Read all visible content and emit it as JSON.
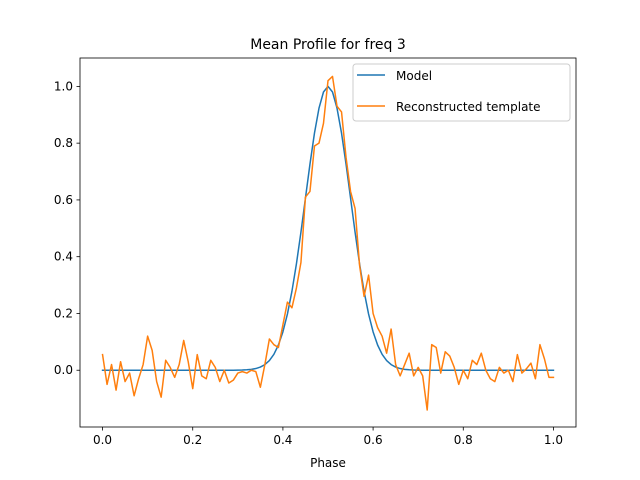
{
  "chart_data": {
    "type": "line",
    "title": "Mean Profile for freq 3",
    "xlabel": "Phase",
    "ylabel": "",
    "xlim": [
      -0.05,
      1.05
    ],
    "ylim": [
      -0.2,
      1.1
    ],
    "xticks": [
      0.0,
      0.2,
      0.4,
      0.6,
      0.8,
      1.0
    ],
    "xtick_labels": [
      "0.0",
      "0.2",
      "0.4",
      "0.6",
      "0.8",
      "1.0"
    ],
    "yticks": [
      0.0,
      0.2,
      0.4,
      0.6,
      0.8,
      1.0
    ],
    "ytick_labels": [
      "0.0",
      "0.2",
      "0.4",
      "0.6",
      "0.8",
      "1.0"
    ],
    "grid": false,
    "legend_position": "top-right",
    "series": [
      {
        "name": "Model",
        "color": "#1f77b4",
        "model": "gaussian",
        "center": 0.5,
        "sigma": 0.05,
        "amplitude": 1.0,
        "x_start": 0.0,
        "x_end": 1.0,
        "points": 101
      },
      {
        "name": "Reconstructed template",
        "color": "#ff7f0e",
        "x": [
          0.0,
          0.01,
          0.02,
          0.03,
          0.04,
          0.05,
          0.06,
          0.07,
          0.08,
          0.09,
          0.1,
          0.11,
          0.12,
          0.13,
          0.14,
          0.15,
          0.16,
          0.17,
          0.18,
          0.19,
          0.2,
          0.21,
          0.22,
          0.23,
          0.24,
          0.25,
          0.26,
          0.27,
          0.28,
          0.29,
          0.3,
          0.31,
          0.32,
          0.33,
          0.34,
          0.35,
          0.36,
          0.37,
          0.38,
          0.39,
          0.4,
          0.41,
          0.42,
          0.43,
          0.44,
          0.45,
          0.46,
          0.47,
          0.48,
          0.49,
          0.5,
          0.51,
          0.52,
          0.53,
          0.54,
          0.55,
          0.56,
          0.57,
          0.58,
          0.59,
          0.6,
          0.61,
          0.62,
          0.63,
          0.64,
          0.65,
          0.66,
          0.67,
          0.68,
          0.69,
          0.7,
          0.71,
          0.72,
          0.73,
          0.74,
          0.75,
          0.76,
          0.77,
          0.78,
          0.79,
          0.8,
          0.81,
          0.82,
          0.83,
          0.84,
          0.85,
          0.86,
          0.87,
          0.88,
          0.89,
          0.9,
          0.91,
          0.92,
          0.93,
          0.94,
          0.95,
          0.96,
          0.97,
          0.98,
          0.99,
          1.0
        ],
        "y": [
          0.055,
          -0.05,
          0.02,
          -0.07,
          0.03,
          -0.04,
          -0.01,
          -0.09,
          -0.03,
          0.02,
          0.12,
          0.07,
          -0.04,
          -0.095,
          0.035,
          0.01,
          -0.025,
          0.02,
          0.105,
          0.03,
          -0.065,
          0.055,
          -0.02,
          -0.03,
          0.035,
          0.01,
          -0.04,
          0.0,
          -0.045,
          -0.035,
          -0.01,
          -0.005,
          -0.01,
          0.0,
          -0.005,
          -0.06,
          0.02,
          0.11,
          0.09,
          0.08,
          0.16,
          0.24,
          0.22,
          0.29,
          0.38,
          0.61,
          0.63,
          0.79,
          0.8,
          0.87,
          1.02,
          1.035,
          0.93,
          0.91,
          0.75,
          0.63,
          0.57,
          0.37,
          0.26,
          0.335,
          0.2,
          0.15,
          0.12,
          0.06,
          0.145,
          0.02,
          -0.02,
          0.02,
          0.06,
          -0.02,
          0.01,
          -0.02,
          -0.14,
          0.09,
          0.08,
          -0.01,
          0.065,
          0.05,
          0.01,
          -0.05,
          0.0,
          -0.03,
          0.035,
          0.02,
          0.06,
          0.0,
          -0.03,
          -0.04,
          0.01,
          -0.01,
          0.0,
          -0.04,
          0.055,
          -0.01,
          0.005,
          0.025,
          -0.03,
          0.09,
          0.04,
          -0.025,
          -0.025
        ]
      }
    ]
  }
}
